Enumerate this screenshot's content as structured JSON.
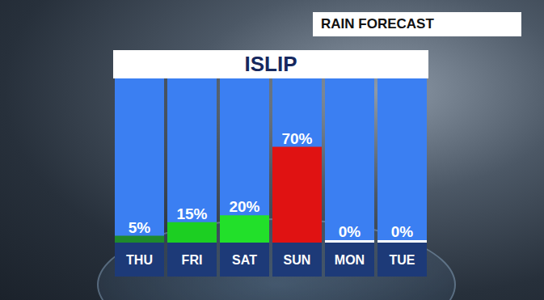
{
  "chart_data": {
    "type": "bar",
    "title": "RAIN FORECAST",
    "subtitle": "ISLIP",
    "categories": [
      "THU",
      "FRI",
      "SAT",
      "SUN",
      "MON",
      "TUE"
    ],
    "values": [
      5,
      15,
      20,
      70,
      0,
      0
    ],
    "value_labels": [
      "5%",
      "15%",
      "20%",
      "70%",
      "0%",
      "0%"
    ],
    "colors": [
      "#1e8a2c",
      "#1ccf22",
      "#22e02a",
      "#e01212",
      "#ffffff",
      "#ffffff"
    ],
    "ylim": [
      0,
      120
    ],
    "grid": false,
    "data_labels": true,
    "tick_labels": "x"
  }
}
